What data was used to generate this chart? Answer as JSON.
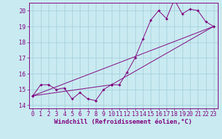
{
  "xlabel": "Windchill (Refroidissement éolien,°C)",
  "background_color": "#c8eaf0",
  "line_color": "#800080",
  "grid_color": "#a8d0dc",
  "xlim": [
    -0.5,
    23.5
  ],
  "ylim": [
    13.8,
    20.5
  ],
  "xticks": [
    0,
    1,
    2,
    3,
    4,
    5,
    6,
    7,
    8,
    9,
    10,
    11,
    12,
    13,
    14,
    15,
    16,
    17,
    18,
    19,
    20,
    21,
    22,
    23
  ],
  "yticks": [
    14,
    15,
    16,
    17,
    18,
    19,
    20
  ],
  "line1_x": [
    0,
    1,
    2,
    3,
    4,
    5,
    6,
    7,
    8,
    9,
    10,
    11,
    12,
    13,
    14,
    15,
    16,
    17,
    18,
    19,
    20,
    21,
    22,
    23
  ],
  "line1_y": [
    14.6,
    15.3,
    15.3,
    15.0,
    15.1,
    14.4,
    14.8,
    14.4,
    14.3,
    15.0,
    15.3,
    15.3,
    16.1,
    17.0,
    18.2,
    19.4,
    20.0,
    19.5,
    20.7,
    19.8,
    20.1,
    20.0,
    19.3,
    19.0
  ],
  "line2_x": [
    0,
    10,
    23
  ],
  "line2_y": [
    14.6,
    15.3,
    19.0
  ],
  "line3_x": [
    0,
    23
  ],
  "line3_y": [
    14.6,
    19.0
  ],
  "line_width": 0.7,
  "marker_size": 1.8,
  "tick_fontsize": 6,
  "xlabel_fontsize": 6.5
}
